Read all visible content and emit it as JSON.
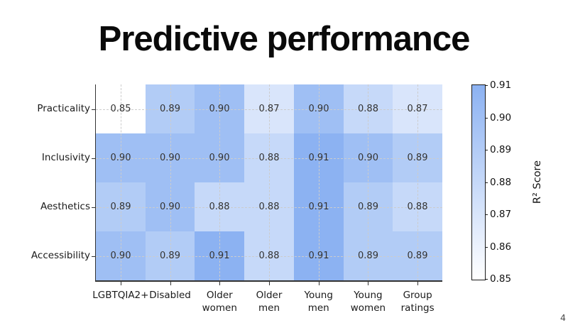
{
  "slide": {
    "title": "Predictive performance",
    "page_number": "4"
  },
  "chart_data": {
    "type": "heatmap",
    "title": "Predictive performance",
    "rows": [
      "Practicality",
      "Inclusivity",
      "Aesthetics",
      "Accessibility"
    ],
    "columns": [
      [
        "LGBTQIA2+"
      ],
      [
        "Disabled"
      ],
      [
        "Older",
        "women"
      ],
      [
        "Older",
        "men"
      ],
      [
        "Young",
        "men"
      ],
      [
        "Young",
        "women"
      ],
      [
        "Group",
        "ratings"
      ]
    ],
    "values": [
      [
        0.85,
        0.89,
        0.9,
        0.87,
        0.9,
        0.88,
        0.87
      ],
      [
        0.9,
        0.9,
        0.9,
        0.88,
        0.91,
        0.9,
        0.89
      ],
      [
        0.89,
        0.9,
        0.88,
        0.88,
        0.91,
        0.89,
        0.88
      ],
      [
        0.9,
        0.89,
        0.91,
        0.88,
        0.91,
        0.89,
        0.89
      ]
    ],
    "value_format_decimals": 2,
    "grid": true,
    "colorbar": {
      "label": "R² Score",
      "min": 0.85,
      "max": 0.91,
      "ticks": [
        0.85,
        0.86,
        0.87,
        0.88,
        0.89,
        0.9,
        0.91
      ],
      "min_color": "#ffffff",
      "max_color": "#8cb2f2"
    }
  }
}
